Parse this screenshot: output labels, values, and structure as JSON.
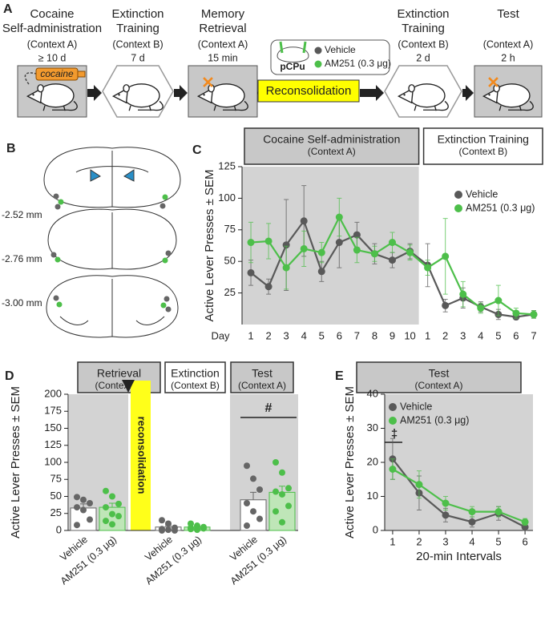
{
  "panel_a": {
    "label": "A",
    "stages": [
      {
        "title": [
          "Cocaine",
          "Self-administration"
        ],
        "context": "(Context A)",
        "duration": "≥ 10 d"
      },
      {
        "title": [
          "Extinction",
          "Training"
        ],
        "context": "(Context B)",
        "duration": "7 d"
      },
      {
        "title": [
          "Memory",
          "Retrieval"
        ],
        "context": "(Context A)",
        "duration": "15 min"
      },
      {
        "title": [
          "Extinction",
          "Training"
        ],
        "context": "(Context B)",
        "duration": "2 d"
      },
      {
        "title": [
          "Test"
        ],
        "context": "(Context A)",
        "duration": "2 h"
      }
    ],
    "drug": "cocaine",
    "site": "pCPu",
    "treatments": [
      "Vehicle",
      "AM251 (0.3 μg)"
    ],
    "treatment_colors": [
      "#595959",
      "#4dbf4a"
    ],
    "phase": "Reconsolidation"
  },
  "panel_b": {
    "label": "B",
    "sections": [
      "-2.52 mm",
      "-2.76 mm",
      "-3.00 mm"
    ]
  },
  "chart_data": [
    {
      "panel": "C",
      "type": "line",
      "phases": [
        {
          "title": "Cocaine Self-administration",
          "subtitle": "(Context A)"
        },
        {
          "title": "Extinction Training",
          "subtitle": "(Context B)"
        }
      ],
      "x_label": "Day",
      "y_label": "Active Lever Presses ± SEM",
      "categories": [
        "1",
        "2",
        "3",
        "4",
        "5",
        "6",
        "7",
        "8",
        "9",
        "10",
        "1",
        "2",
        "3",
        "4",
        "5",
        "6",
        "7"
      ],
      "ylim": [
        0,
        125
      ],
      "yticks": [
        25,
        50,
        75,
        100,
        125
      ],
      "legend": "upper right",
      "series": [
        {
          "name": "Vehicle",
          "color": "#595959",
          "values": [
            41,
            30,
            63,
            82,
            42,
            65,
            71,
            56,
            51,
            58,
            47,
            15,
            21,
            14,
            8,
            6,
            8
          ],
          "errors": [
            10,
            6,
            36,
            28,
            8,
            20,
            10,
            8,
            6,
            6,
            17,
            5,
            8,
            4,
            4,
            2,
            3
          ]
        },
        {
          "name": "AM251 (0.3 μg)",
          "color": "#4dbf4a",
          "values": [
            65,
            66,
            45,
            60,
            57,
            85,
            59,
            56,
            65,
            57,
            45,
            54,
            24,
            13,
            19,
            9,
            8
          ],
          "errors": [
            16,
            14,
            17,
            14,
            8,
            15,
            10,
            6,
            8,
            6,
            6,
            30,
            10,
            4,
            12,
            4,
            3
          ]
        }
      ]
    },
    {
      "panel": "D",
      "type": "bar",
      "groups": [
        {
          "title": "Retrieval",
          "subtitle": "(Context A)"
        },
        {
          "title": "Extinction",
          "subtitle": "(Context B)"
        },
        {
          "title": "Test",
          "subtitle": "(Context A)"
        }
      ],
      "y_label": "Active Lever Presses ± SEM",
      "ylim": [
        0,
        200
      ],
      "yticks": [
        0,
        25,
        50,
        75,
        100,
        125,
        150,
        175,
        200
      ],
      "phase_label": "reconsolidation",
      "significance": "#",
      "series": [
        {
          "name": "Vehicle",
          "color": "#ffffff",
          "edge_color": "#666666",
          "point_color": "#666666",
          "values": [
            33,
            5,
            45
          ],
          "errors": [
            6,
            2,
            11
          ],
          "points": [
            [
              49,
              45,
              40,
              34,
              30,
              16,
              8
            ],
            [
              15,
              10,
              4,
              2,
              1,
              0,
              0
            ],
            [
              95,
              76,
              60,
              40,
              28,
              17,
              7
            ]
          ]
        },
        {
          "name": "AM251 (0.3 μg)",
          "color": "#bfe6b8",
          "edge_color": "#4dbf4a",
          "point_color": "#4dbf4a",
          "values": [
            34,
            5,
            56
          ],
          "errors": [
            6,
            1,
            9
          ],
          "points": [
            [
              58,
              50,
              39,
              34,
              24,
              21,
              14,
              9
            ],
            [
              10,
              7,
              5,
              4,
              3,
              3,
              2,
              1
            ],
            [
              100,
              85,
              62,
              57,
              53,
              36,
              28,
              12
            ]
          ]
        }
      ]
    },
    {
      "panel": "E",
      "type": "line",
      "title": "Test",
      "subtitle": "(Context A)",
      "x_label": "20-min Intervals",
      "y_label": "Active Lever Presses ± SEM",
      "x": [
        1,
        2,
        3,
        4,
        5,
        6
      ],
      "xlim": [
        0.7,
        6.3
      ],
      "xticks": [
        1,
        2,
        3,
        4,
        5,
        6
      ],
      "ylim": [
        0,
        40
      ],
      "yticks": [
        0,
        10,
        20,
        30,
        40
      ],
      "legend": "upper left",
      "annotation": "‡",
      "series": [
        {
          "name": "Vehicle",
          "color": "#595959",
          "values": [
            21,
            11,
            4.5,
            2.5,
            5,
            1
          ],
          "errors": [
            6,
            5,
            2,
            1.5,
            2,
            1
          ]
        },
        {
          "name": "AM251 (0.3 μg)",
          "color": "#4dbf4a",
          "values": [
            18,
            13.5,
            8,
            5.5,
            5.5,
            2.5
          ],
          "errors": [
            3,
            4,
            2,
            1.5,
            1.5,
            1
          ]
        }
      ]
    }
  ]
}
